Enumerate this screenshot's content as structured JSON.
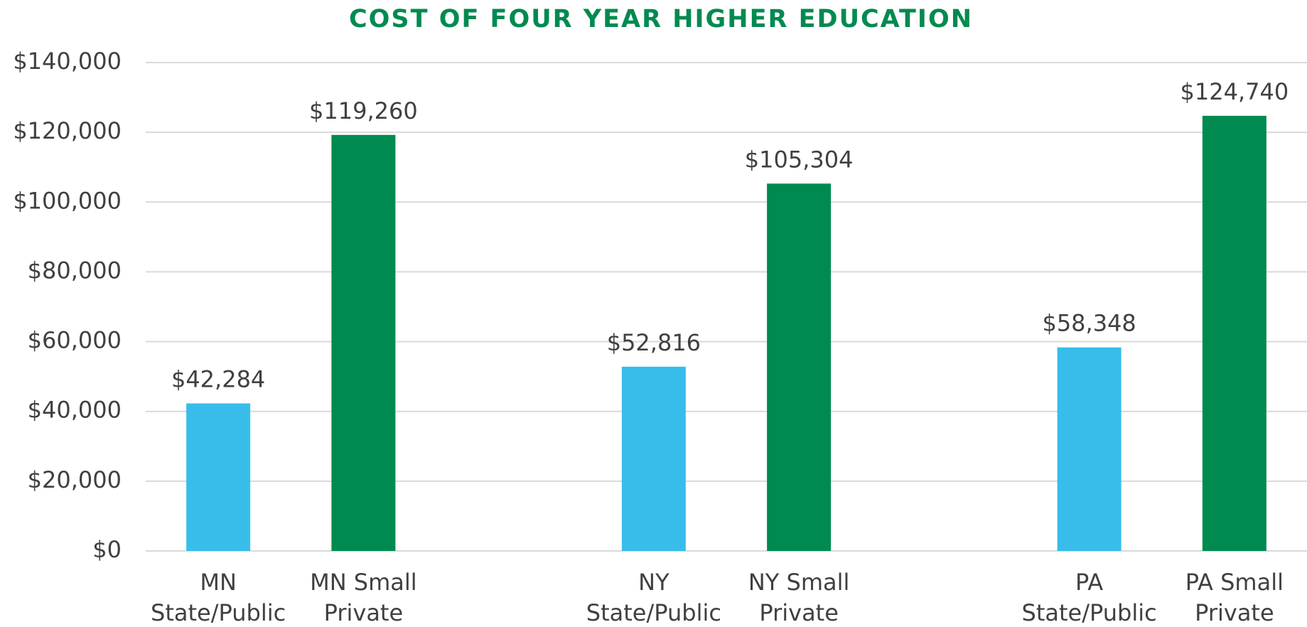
{
  "chart_data": {
    "type": "bar",
    "title": "COST OF FOUR YEAR HIGHER EDUCATION",
    "categories": [
      [
        "MN",
        "State/Public"
      ],
      [
        "MN Small",
        "Private"
      ],
      null,
      [
        "NY",
        "State/Public"
      ],
      [
        "NY Small",
        "Private"
      ],
      null,
      [
        "PA",
        "State/Public"
      ],
      [
        "PA Small",
        "Private"
      ]
    ],
    "values": [
      42284,
      119260,
      null,
      52816,
      105304,
      null,
      58348,
      124740
    ],
    "value_labels": [
      "$42,284",
      "$119,260",
      null,
      "$52,816",
      "$105,304",
      null,
      "$58,348",
      "$124,740"
    ],
    "colors": [
      "#38bdea",
      "#008a50",
      null,
      "#38bdea",
      "#008a50",
      null,
      "#38bdea",
      "#008a50"
    ],
    "ylim": [
      0,
      140000
    ],
    "yticks": [
      {
        "value": 0,
        "label": "$0"
      },
      {
        "value": 20000,
        "label": "$20,000"
      },
      {
        "value": 40000,
        "label": "$40,000"
      },
      {
        "value": 60000,
        "label": "$60,000"
      },
      {
        "value": 80000,
        "label": "$80,000"
      },
      {
        "value": 100000,
        "label": "$100,000"
      },
      {
        "value": 120000,
        "label": "$120,000"
      },
      {
        "value": 140000,
        "label": "$140,000"
      }
    ],
    "grid": true
  }
}
